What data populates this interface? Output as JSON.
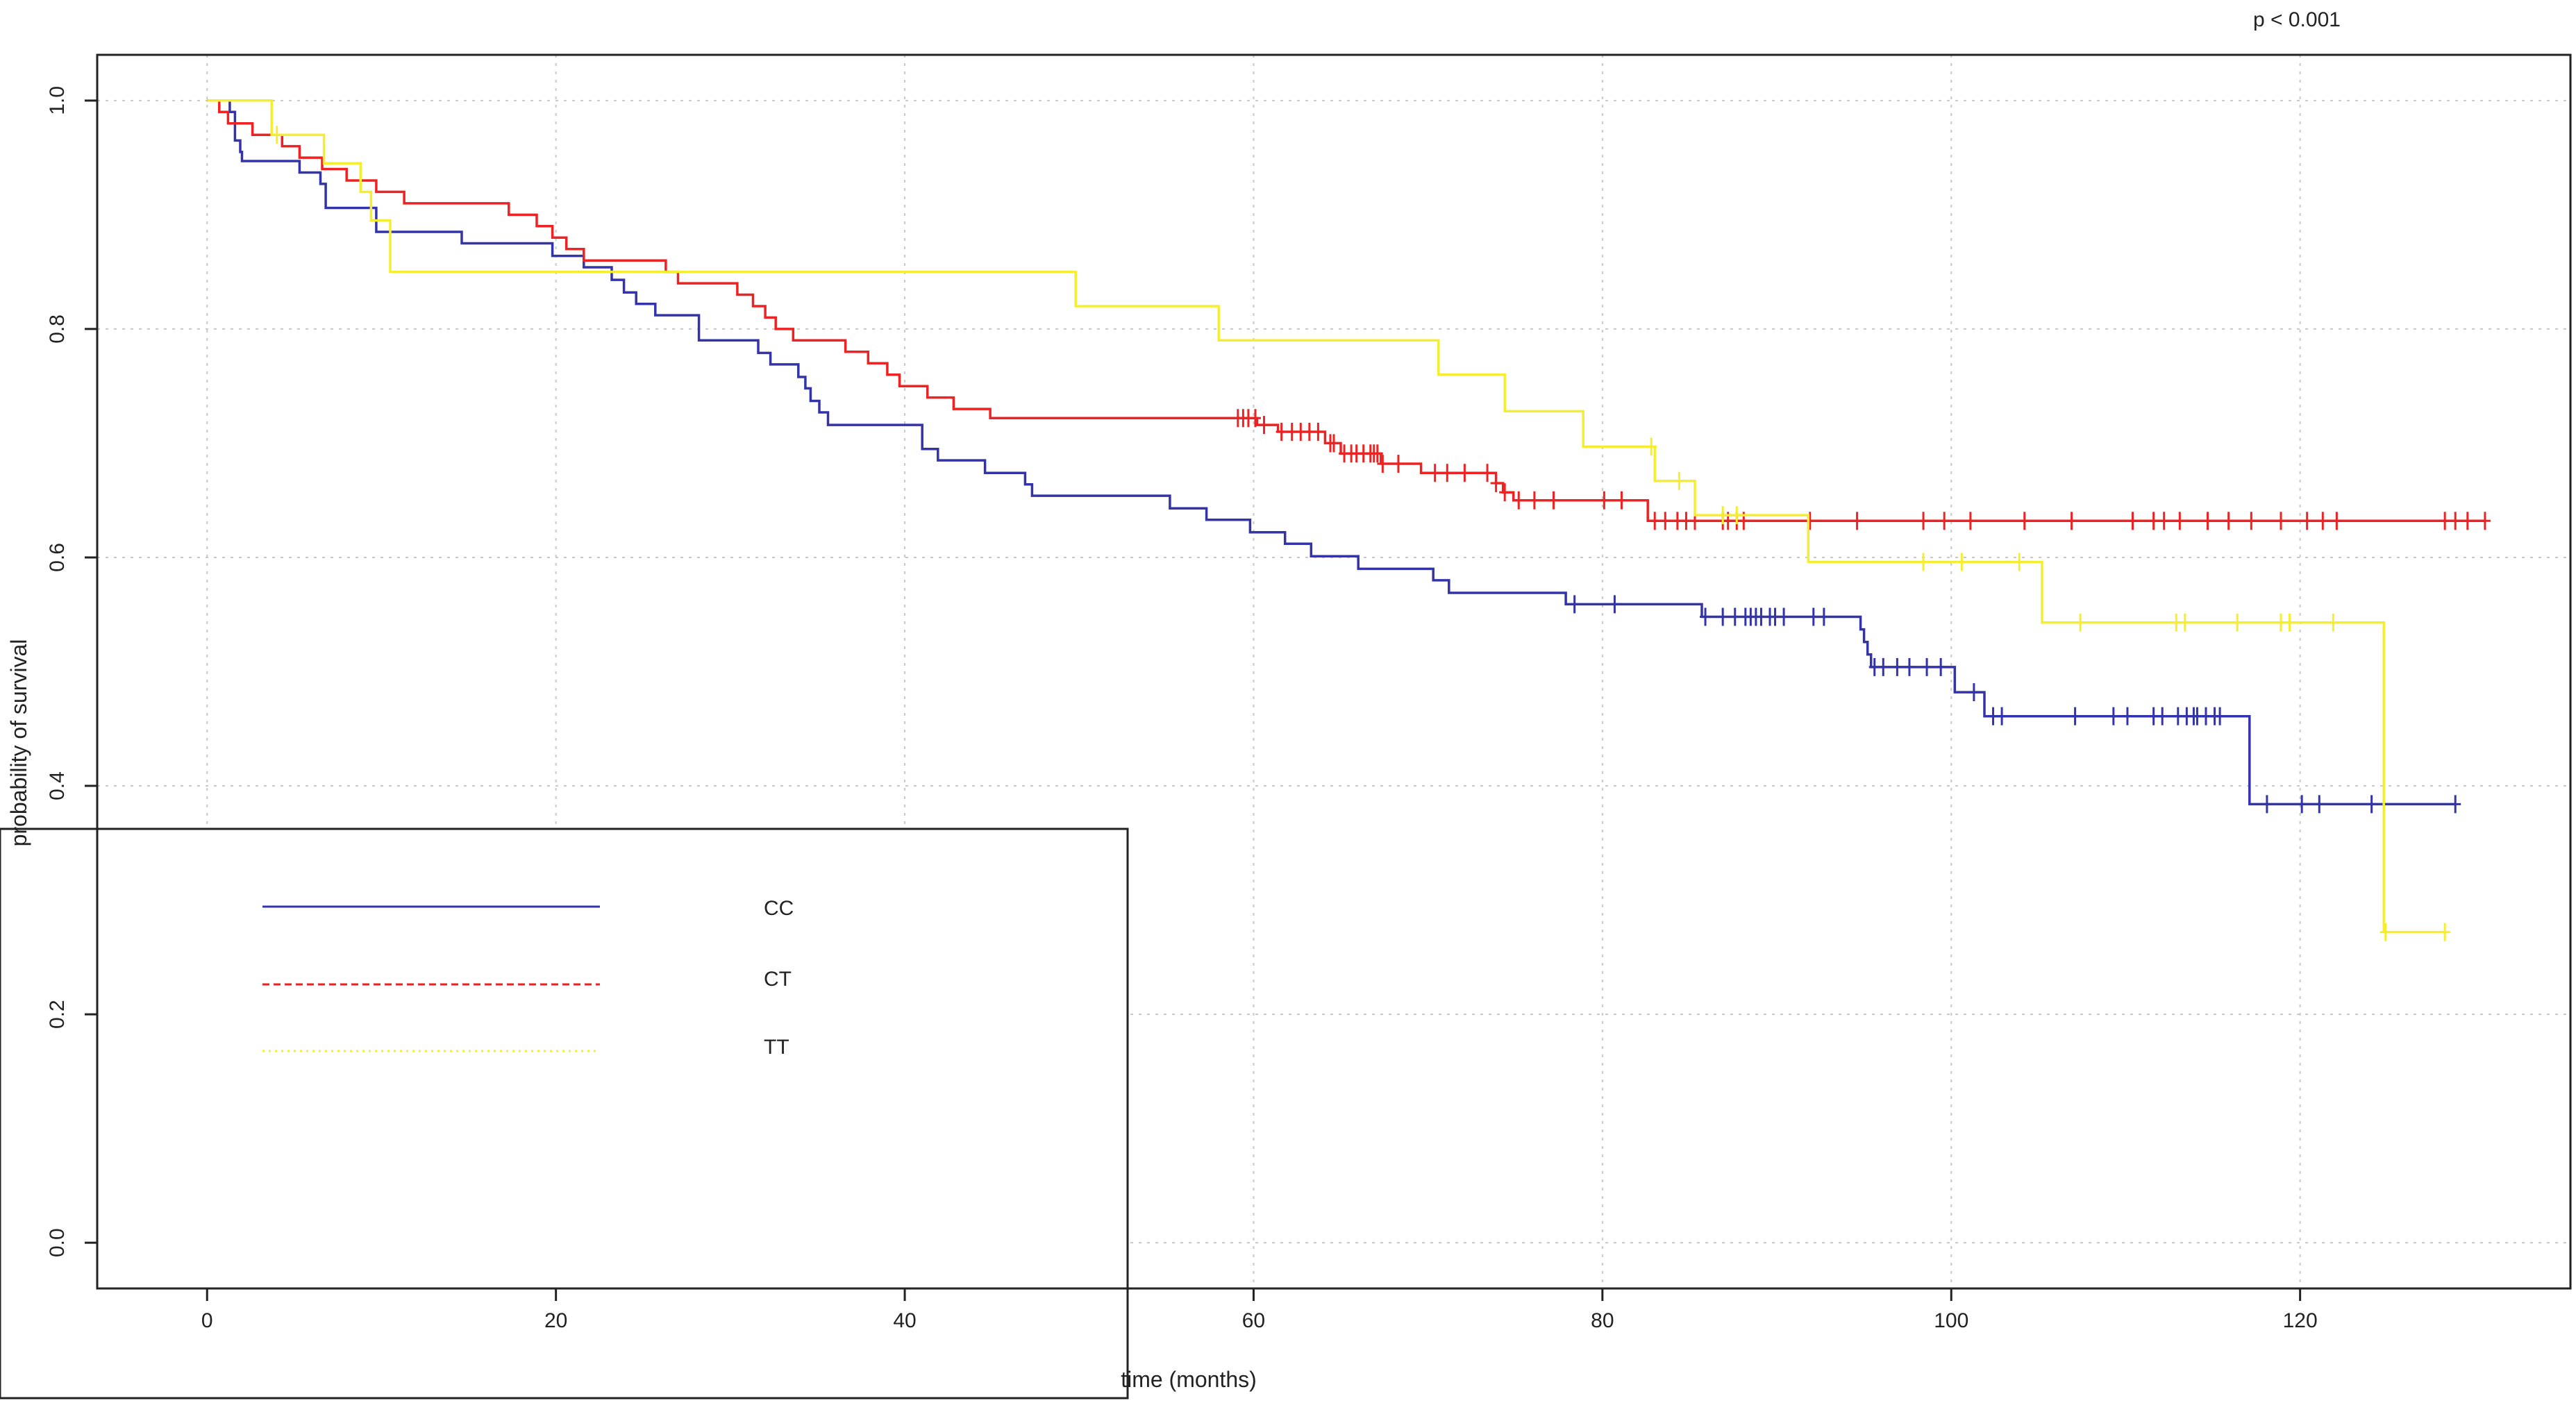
{
  "chart_data": {
    "type": "line",
    "subtype": "kaplan-meier step",
    "annotation": "p  < 0.001",
    "xlabel": "time (months)",
    "ylabel": "probability of survival",
    "xlim": [
      -6.3,
      135.5
    ],
    "ylim": [
      -0.04,
      1.04
    ],
    "xticks": [
      0,
      20,
      40,
      60,
      80,
      100,
      120
    ],
    "yticks": [
      0.0,
      0.2,
      0.4,
      0.6,
      0.8,
      1.0
    ],
    "xtick_labels": [
      "0",
      "20",
      "40",
      "60",
      "80",
      "100",
      "120"
    ],
    "ytick_labels": [
      "0.0",
      "0.2",
      "0.4",
      "0.6",
      "0.8",
      "1.0"
    ],
    "grid": true,
    "legend_position": "bottom-left",
    "series": [
      {
        "name": "CC",
        "color": "#3333aa",
        "line_style": "solid",
        "points": [
          [
            0,
            1.0
          ],
          [
            1.3,
            0.99
          ],
          [
            1.6,
            0.965
          ],
          [
            1.9,
            0.955
          ],
          [
            2.0,
            0.947
          ],
          [
            5.3,
            0.937
          ],
          [
            6.5,
            0.927
          ],
          [
            6.8,
            0.906
          ],
          [
            9.7,
            0.885
          ],
          [
            14.6,
            0.875
          ],
          [
            19.8,
            0.864
          ],
          [
            21.6,
            0.854
          ],
          [
            23.2,
            0.843
          ],
          [
            23.9,
            0.832
          ],
          [
            24.6,
            0.822
          ],
          [
            25.7,
            0.812
          ],
          [
            28.2,
            0.79
          ],
          [
            31.6,
            0.779
          ],
          [
            32.3,
            0.769
          ],
          [
            33.9,
            0.758
          ],
          [
            34.3,
            0.748
          ],
          [
            34.6,
            0.737
          ],
          [
            35.1,
            0.727
          ],
          [
            35.6,
            0.716
          ],
          [
            41.0,
            0.695
          ],
          [
            41.9,
            0.685
          ],
          [
            44.6,
            0.674
          ],
          [
            46.9,
            0.664
          ],
          [
            47.3,
            0.654
          ],
          [
            55.2,
            0.643
          ],
          [
            57.3,
            0.633
          ],
          [
            59.8,
            0.622
          ],
          [
            61.8,
            0.612
          ],
          [
            63.3,
            0.601
          ],
          [
            66.0,
            0.59
          ],
          [
            70.3,
            0.58
          ],
          [
            71.2,
            0.569
          ],
          [
            77.9,
            0.559
          ],
          [
            85.7,
            0.548
          ],
          [
            94.8,
            0.537
          ],
          [
            95.0,
            0.526
          ],
          [
            95.2,
            0.515
          ],
          [
            95.4,
            0.504
          ],
          [
            100.2,
            0.482
          ],
          [
            101.9,
            0.461
          ],
          [
            117.1,
            0.384
          ],
          [
            128.9,
            0.384
          ]
        ],
        "censor_times": [
          78.4,
          80.7,
          85.9,
          86.9,
          87.6,
          88.2,
          88.5,
          88.8,
          89.1,
          89.6,
          89.9,
          90.4,
          92.1,
          92.7,
          95.6,
          96.1,
          96.9,
          97.6,
          98.6,
          99.4,
          101.3,
          102.4,
          102.9,
          107.1,
          109.3,
          110.1,
          111.6,
          112.1,
          113.0,
          113.5,
          113.9,
          114.1,
          114.6,
          115.1,
          115.4,
          118.1,
          120.1,
          121.1,
          124.1,
          128.9
        ]
      },
      {
        "name": "CT",
        "color": "#ee2222",
        "line_style": "dashed",
        "points": [
          [
            0,
            1.0
          ],
          [
            0.7,
            0.99
          ],
          [
            1.2,
            0.98
          ],
          [
            2.6,
            0.97
          ],
          [
            4.3,
            0.96
          ],
          [
            5.3,
            0.95
          ],
          [
            6.6,
            0.94
          ],
          [
            8.0,
            0.93
          ],
          [
            9.7,
            0.92
          ],
          [
            11.3,
            0.91
          ],
          [
            17.3,
            0.9
          ],
          [
            18.9,
            0.89
          ],
          [
            19.8,
            0.88
          ],
          [
            20.6,
            0.87
          ],
          [
            21.6,
            0.86
          ],
          [
            26.3,
            0.85
          ],
          [
            27.0,
            0.84
          ],
          [
            30.4,
            0.83
          ],
          [
            31.3,
            0.82
          ],
          [
            32.0,
            0.81
          ],
          [
            32.6,
            0.8
          ],
          [
            33.6,
            0.79
          ],
          [
            36.6,
            0.78
          ],
          [
            37.9,
            0.77
          ],
          [
            39.0,
            0.76
          ],
          [
            39.7,
            0.75
          ],
          [
            41.3,
            0.74
          ],
          [
            42.8,
            0.73
          ],
          [
            44.9,
            0.722
          ],
          [
            60.2,
            0.716
          ],
          [
            61.4,
            0.71
          ],
          [
            64.1,
            0.7
          ],
          [
            65.0,
            0.691
          ],
          [
            67.3,
            0.682
          ],
          [
            69.6,
            0.674
          ],
          [
            73.9,
            0.665
          ],
          [
            74.3,
            0.657
          ],
          [
            74.9,
            0.65
          ],
          [
            82.6,
            0.632
          ],
          [
            130.6,
            0.632
          ]
        ],
        "censor_times": [
          59.1,
          59.4,
          59.7,
          60.1,
          60.6,
          61.6,
          62.2,
          62.7,
          63.2,
          63.7,
          64.4,
          64.6,
          65.2,
          65.6,
          65.9,
          66.3,
          66.7,
          66.9,
          67.1,
          67.4,
          68.3,
          70.4,
          71.1,
          72.1,
          73.4,
          73.9,
          74.4,
          75.2,
          76.1,
          77.2,
          80.1,
          81.1,
          83.0,
          83.6,
          84.3,
          84.8,
          85.3,
          86.9,
          87.2,
          87.7,
          88.1,
          91.9,
          94.6,
          98.4,
          99.6,
          101.1,
          104.2,
          106.9,
          110.4,
          111.6,
          112.2,
          113.1,
          114.7,
          115.9,
          117.2,
          118.9,
          120.4,
          121.3,
          122.1,
          128.3,
          128.9,
          129.6,
          130.6
        ]
      },
      {
        "name": "TT",
        "color": "#f5ee30",
        "line_style": "dotted",
        "points": [
          [
            0,
            1.0
          ],
          [
            3.7,
            0.97
          ],
          [
            6.7,
            0.945
          ],
          [
            8.8,
            0.92
          ],
          [
            9.4,
            0.895
          ],
          [
            10.5,
            0.85
          ],
          [
            49.8,
            0.82
          ],
          [
            58.0,
            0.79
          ],
          [
            70.6,
            0.76
          ],
          [
            74.4,
            0.728
          ],
          [
            78.9,
            0.697
          ],
          [
            83.0,
            0.667
          ],
          [
            85.3,
            0.637
          ],
          [
            91.8,
            0.596
          ],
          [
            105.2,
            0.543
          ],
          [
            124.8,
            0.272
          ],
          [
            128.3,
            0.272
          ]
        ],
        "censor_times": [
          4.0,
          82.8,
          84.4,
          86.9,
          87.7,
          98.4,
          100.6,
          103.9,
          107.4,
          112.9,
          113.4,
          116.4,
          118.9,
          119.4,
          121.9,
          124.9,
          128.3
        ]
      }
    ]
  }
}
